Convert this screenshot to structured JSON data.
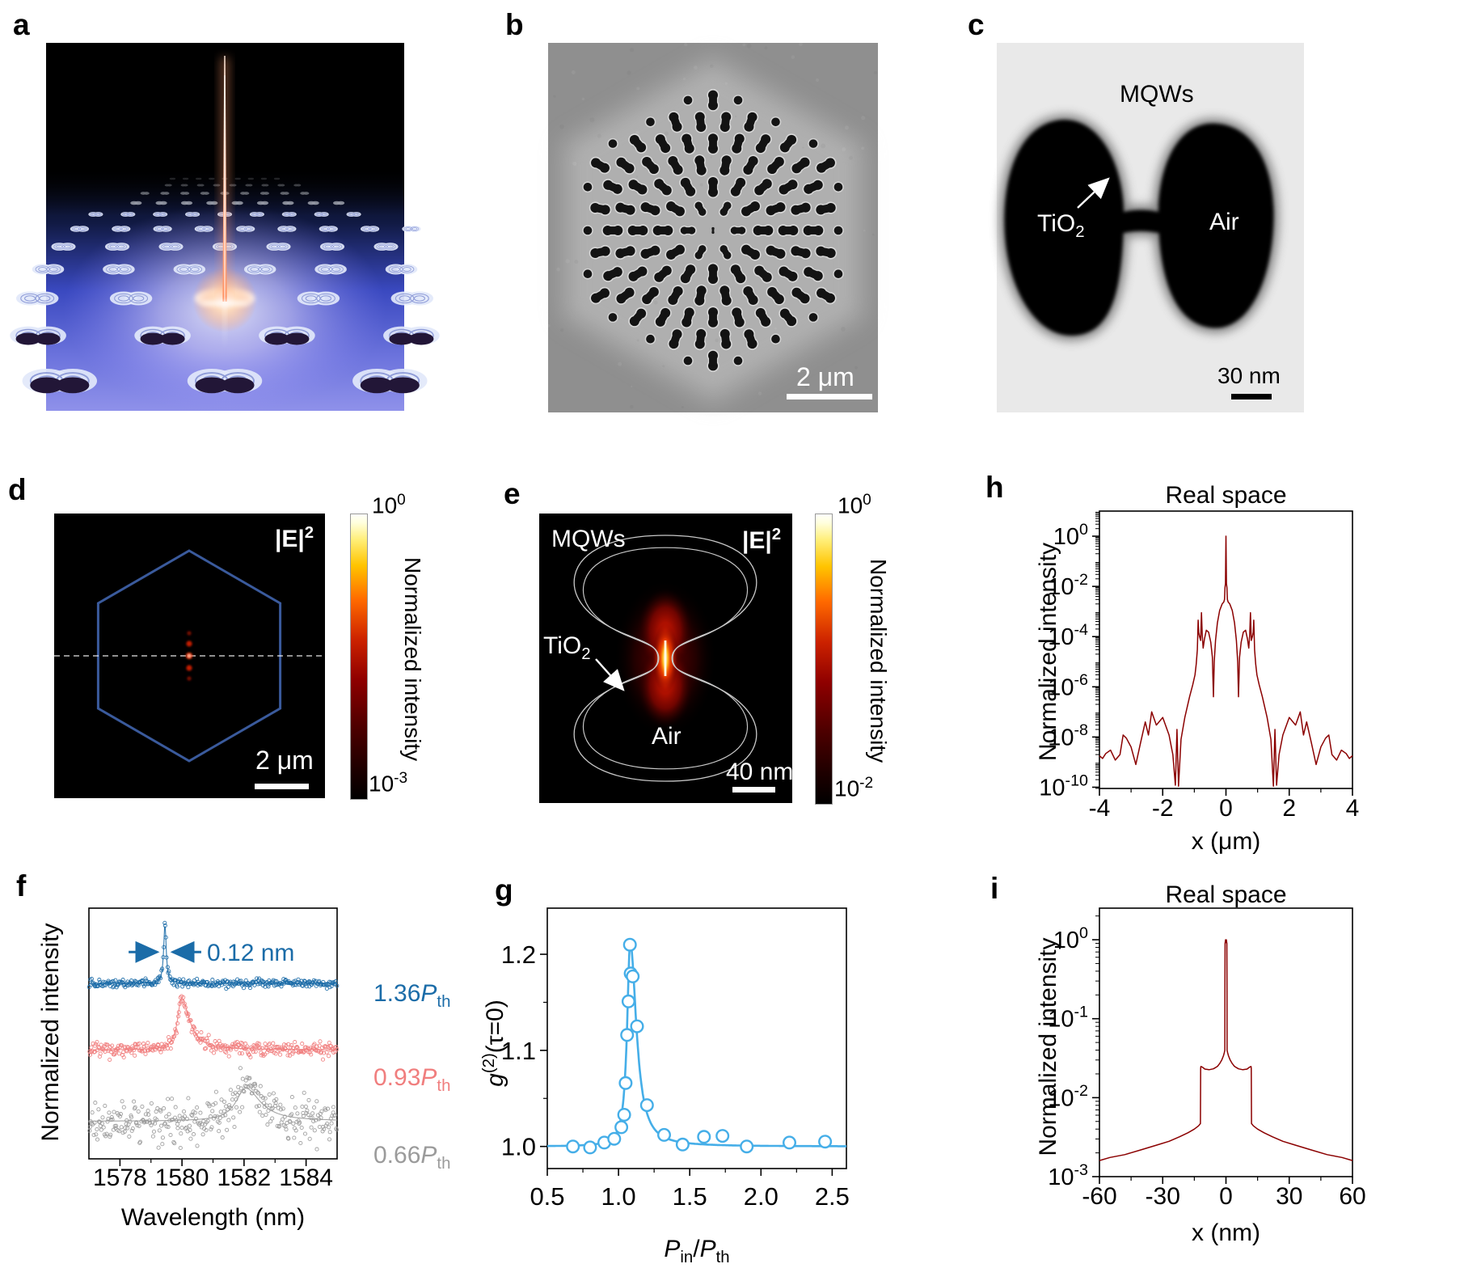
{
  "panels": {
    "a": {
      "label": "a"
    },
    "b": {
      "label": "b",
      "scalebar": "2 μm"
    },
    "c": {
      "label": "c",
      "mqws": "MQWs",
      "tio2_base": "TiO",
      "tio2_sub": "2",
      "air": "Air",
      "scalebar": "30 nm"
    },
    "d": {
      "label": "d",
      "field_base": "|E|",
      "field_sup": "2",
      "scalebar": "2 μm",
      "hexagon_color": "#3A5A9C",
      "colorbar": {
        "top_base": "10",
        "top_exp": "0",
        "bottom_base": "10",
        "bottom_exp": "-3",
        "title": "Normalized intensity"
      }
    },
    "e": {
      "label": "e",
      "mqws": "MQWs",
      "field_base": "|E|",
      "field_sup": "2",
      "tio2_base": "TiO",
      "tio2_sub": "2",
      "air": "Air",
      "scalebar": "40 nm",
      "colorbar": {
        "top_base": "10",
        "top_exp": "0",
        "bottom_base": "10",
        "bottom_exp": "-2",
        "title": "Normalized intensity"
      }
    },
    "f": {
      "label": "f",
      "ylabel": "Normalized intensity",
      "xlabel": "Wavelength (nm)",
      "annotation": "0.12 nm",
      "annotation_color": "#1B6CA8",
      "traces": [
        {
          "value": "1.36",
          "p": "P",
          "sub": "th",
          "color": "#1B6CA8"
        },
        {
          "value": "0.93",
          "p": "P",
          "sub": "th",
          "color": "#F07E7E"
        },
        {
          "value": "0.66",
          "p": "P",
          "sub": "th",
          "color": "#9B9B9B"
        }
      ]
    },
    "g": {
      "label": "g",
      "ylabel_base": "g",
      "ylabel_sup": "(2)",
      "ylabel_tail": "(τ=0)",
      "xlabel_p1": "P",
      "xlabel_sub1": "in",
      "xlabel_slash": "/",
      "xlabel_p2": "P",
      "xlabel_sub2": "th"
    },
    "h": {
      "label": "h",
      "title": "Real space",
      "ylabel": "Normalized intensity",
      "xlabel": "x (μm)"
    },
    "i": {
      "label": "i",
      "title": "Real space",
      "ylabel": "Normalized intensity",
      "xlabel": "x (nm)"
    }
  },
  "chart_data": [
    {
      "id": "f",
      "type": "line",
      "xlabel": "Wavelength (nm)",
      "ylabel": "Normalized intensity",
      "xlim": [
        1577,
        1585
      ],
      "xtick_vals": [
        1578,
        1580,
        1582,
        1584
      ],
      "xtick_labels": [
        "1578",
        "1580",
        "1582",
        "1584"
      ],
      "xminor": [
        1579,
        1581,
        1583
      ],
      "annotation": "0.12 nm",
      "annotation_x": 1579.45,
      "series": [
        {
          "name": "1.36Pth",
          "color": "#1B6CA8",
          "baseline": 0.7,
          "center": 1579.45,
          "fwhm_left": 0.1,
          "fwhm_right": 0.1,
          "height": 0.235,
          "noise": 0.0075
        },
        {
          "name": "0.93Pth",
          "color": "#F07E7E",
          "baseline": 0.435,
          "center": 1579.98,
          "fwhm_left": 0.3,
          "fwhm_right": 0.62,
          "height": 0.205,
          "noise": 0.013
        },
        {
          "name": "0.66Pth",
          "color": "#9B9B9B",
          "baseline": 0.15,
          "center": 1582.05,
          "fwhm_left": 0.75,
          "fwhm_right": 1.15,
          "height": 0.132,
          "noise": 0.04
        }
      ]
    },
    {
      "id": "g",
      "type": "scatter",
      "xlabel": "Pin/Pth",
      "ylabel": "g(2)(tau=0)",
      "xlim": [
        0.5,
        2.6
      ],
      "ylim": [
        0.977,
        1.248
      ],
      "xtick_vals": [
        0.5,
        1.0,
        1.5,
        2.0,
        2.5
      ],
      "xtick_labels": [
        "0.5",
        "1.0",
        "1.5",
        "2.0",
        "2.5"
      ],
      "xminor": [
        0.75,
        1.25,
        1.75,
        2.25
      ],
      "ytick_vals": [
        1.0,
        1.1,
        1.2
      ],
      "ytick_labels": [
        "1.0",
        "1.1",
        "1.2"
      ],
      "yminor": [
        1.05,
        1.15
      ],
      "color": "#45AEE8",
      "points": [
        [
          0.68,
          1.0
        ],
        [
          0.8,
          0.999
        ],
        [
          0.9,
          1.004
        ],
        [
          0.97,
          1.008
        ],
        [
          1.02,
          1.02
        ],
        [
          1.04,
          1.033
        ],
        [
          1.05,
          1.066
        ],
        [
          1.06,
          1.116
        ],
        [
          1.07,
          1.151
        ],
        [
          1.08,
          1.21
        ],
        [
          1.085,
          1.18
        ],
        [
          1.1,
          1.177
        ],
        [
          1.13,
          1.125
        ],
        [
          1.2,
          1.043
        ],
        [
          1.32,
          1.012
        ],
        [
          1.45,
          1.002
        ],
        [
          1.6,
          1.01
        ],
        [
          1.73,
          1.011
        ],
        [
          1.9,
          1.0
        ],
        [
          2.2,
          1.004
        ],
        [
          2.45,
          1.005
        ]
      ],
      "fit": {
        "baseline": 1.0,
        "amp": 0.213,
        "center": 1.082,
        "width_left": 0.026,
        "width_right": 0.052
      }
    },
    {
      "id": "h",
      "type": "line",
      "title": "Real space",
      "xlabel": "x (μm)",
      "ylabel": "Normalized intensity",
      "xlim": [
        -4,
        4
      ],
      "xtick_vals": [
        -4,
        -2,
        0,
        2,
        4
      ],
      "xtick_labels": [
        "-4",
        "-2",
        "0",
        "2",
        "4"
      ],
      "xminor": [
        -3,
        -1,
        1,
        3
      ],
      "ylog": true,
      "ylim_exp": [
        -10.05,
        1.0
      ],
      "ytick_exps": [
        0,
        -2,
        -4,
        -6,
        -8,
        -10
      ],
      "color": "#8B0000",
      "mirror": true,
      "points_half": [
        [
          0,
          1.0
        ],
        [
          0.008,
          0.12
        ],
        [
          0.015,
          0.013
        ],
        [
          0.03,
          0.009
        ],
        [
          0.045,
          0.003
        ],
        [
          0.07,
          0.0024
        ],
        [
          0.12,
          0.002
        ],
        [
          0.2,
          0.0011
        ],
        [
          0.27,
          0.00035
        ],
        [
          0.33,
          7e-05
        ],
        [
          0.37,
          1e-05
        ],
        [
          0.395,
          4e-07
        ],
        [
          0.43,
          1.5e-05
        ],
        [
          0.48,
          6e-05
        ],
        [
          0.55,
          0.00015
        ],
        [
          0.62,
          0.00018
        ],
        [
          0.68,
          8e-05
        ],
        [
          0.72,
          3.5e-05
        ],
        [
          0.75,
          0.00011
        ],
        [
          0.775,
          0.0009
        ],
        [
          0.8,
          7e-05
        ],
        [
          0.835,
          0.0001
        ],
        [
          0.862,
          0.00015
        ],
        [
          0.88,
          0.00045
        ],
        [
          0.905,
          3e-05
        ],
        [
          0.94,
          8e-06
        ],
        [
          0.98,
          3e-06
        ],
        [
          1.05,
          1.2e-06
        ],
        [
          1.15,
          4e-07
        ],
        [
          1.3,
          6e-08
        ],
        [
          1.42,
          8e-09
        ],
        [
          1.5,
          1.1e-10
        ],
        [
          1.55,
          2e-08
        ],
        [
          1.6,
          1.2e-10
        ],
        [
          1.68,
          2e-09
        ],
        [
          1.8,
          1.2e-08
        ],
        [
          2.0,
          6e-08
        ],
        [
          2.2,
          3e-08
        ],
        [
          2.35,
          1e-07
        ],
        [
          2.45,
          1.2e-08
        ],
        [
          2.55,
          4e-08
        ],
        [
          2.7,
          6e-09
        ],
        [
          2.85,
          8e-10
        ],
        [
          3.0,
          4e-09
        ],
        [
          3.15,
          9e-09
        ],
        [
          3.25,
          1.2e-08
        ],
        [
          3.35,
          2e-09
        ],
        [
          3.5,
          1.2e-09
        ],
        [
          3.65,
          3e-09
        ],
        [
          3.8,
          2.2e-09
        ],
        [
          3.9,
          1.4e-09
        ],
        [
          4.0,
          1.8e-09
        ]
      ]
    },
    {
      "id": "i",
      "type": "line",
      "title": "Real space",
      "xlabel": "x (nm)",
      "ylabel": "Normalized intensity",
      "xlim": [
        -60,
        60
      ],
      "xtick_vals": [
        -60,
        -30,
        0,
        30,
        60
      ],
      "xtick_labels": [
        "-60",
        "-30",
        "0",
        "30",
        "60"
      ],
      "xminor": [
        -45,
        -15,
        15,
        45
      ],
      "ylog": true,
      "ylim_exp": [
        -3.0,
        0.4
      ],
      "ytick_exps": [
        0,
        -1,
        -2,
        -3
      ],
      "color": "#8B0000",
      "mirror": true,
      "points_half": [
        [
          0,
          0.92
        ],
        [
          0.2,
          1.0
        ],
        [
          0.42,
          0.9
        ],
        [
          0.5,
          0.2
        ],
        [
          0.55,
          0.04
        ],
        [
          0.8,
          0.037
        ],
        [
          1.2,
          0.034
        ],
        [
          2,
          0.03
        ],
        [
          3,
          0.027
        ],
        [
          4,
          0.025
        ],
        [
          5,
          0.024
        ],
        [
          6,
          0.0232
        ],
        [
          8,
          0.0226
        ],
        [
          10,
          0.023
        ],
        [
          11.3,
          0.0245
        ],
        [
          11.9,
          0.0248
        ],
        [
          12.0,
          0.0235
        ],
        [
          12.1,
          0.0047
        ],
        [
          13,
          0.0044
        ],
        [
          15,
          0.004
        ],
        [
          18,
          0.0036
        ],
        [
          22,
          0.0032
        ],
        [
          27,
          0.0028
        ],
        [
          33,
          0.0025
        ],
        [
          40,
          0.0022
        ],
        [
          48,
          0.0019
        ],
        [
          55,
          0.00175
        ],
        [
          60,
          0.0016
        ]
      ]
    }
  ]
}
